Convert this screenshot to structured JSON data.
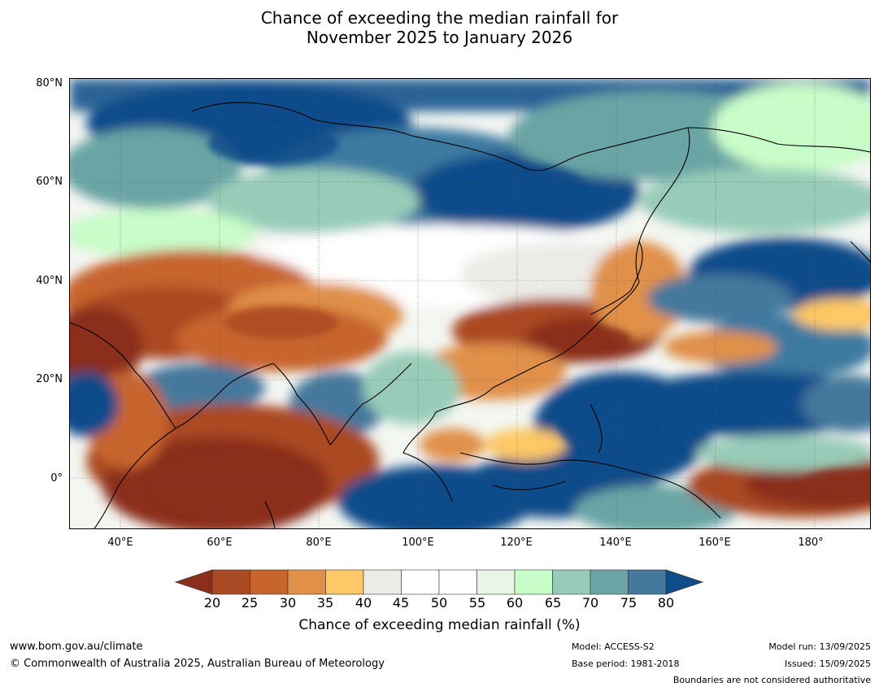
{
  "title": {
    "line1": "Chance of exceeding the median rainfall for",
    "line2": "November 2025 to January 2026"
  },
  "map": {
    "lat_labels": [
      "80°N",
      "60°N",
      "40°N",
      "20°N",
      "0°"
    ],
    "lon_labels": [
      "40°E",
      "60°E",
      "80°E",
      "100°E",
      "120°E",
      "140°E",
      "160°E",
      "180°"
    ]
  },
  "colorbar": {
    "ticks": [
      "20",
      "25",
      "30",
      "35",
      "40",
      "45",
      "50",
      "55",
      "60",
      "65",
      "70",
      "75",
      "80"
    ],
    "colors": [
      "#8b2f1c",
      "#aa4a24",
      "#c8652f",
      "#e09048",
      "#fdc865",
      "#ecebe7",
      "#ffffff",
      "#ffffff",
      "#e8f6e8",
      "#c8fcc8",
      "#98ccb8",
      "#6aa4a4",
      "#44789c",
      "#0f4c8a"
    ],
    "label": "Chance of exceeding median rainfall (%)"
  },
  "footer": {
    "website": "www.bom.gov.au/climate",
    "copyright": "© Commonwealth of Australia 2025, Australian Bureau of Meteorology",
    "model": "Model: ACCESS-S2",
    "base_period": "Base period: 1981-2018",
    "model_run": "Model run: 13/09/2025",
    "issued": "Issued: 15/09/2025",
    "disclaimer": "Boundaries are not considered authoritative"
  }
}
